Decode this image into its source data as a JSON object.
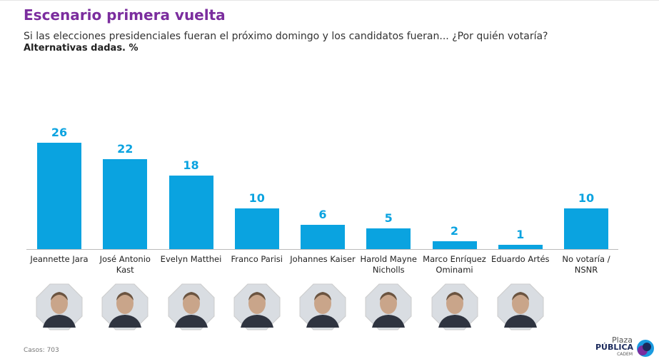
{
  "chart_data": {
    "type": "bar",
    "title": "Escenario primera vuelta",
    "subtitle": "Si las elecciones presidenciales fueran el próximo domingo y los candidatos fueran... ¿Por quién votaría?",
    "note": "Alternativas dadas. %",
    "categories": [
      "Jeannette Jara",
      "José Antonio Kast",
      "Evelyn Matthei",
      "Franco Parisi",
      "Johannes Kaiser",
      "Harold Mayne Nicholls",
      "Marco Enríquez Ominami",
      "Eduardo Artés",
      "No votaría / NSNR"
    ],
    "values": [
      26,
      22,
      18,
      10,
      6,
      5,
      2,
      1,
      10
    ],
    "color": "#0aa3e0"
  },
  "footer": {
    "cases": "Casos: 703",
    "logo_top": "Plaza",
    "logo_main": "PÚBLICA",
    "logo_sub": "CADEM"
  }
}
